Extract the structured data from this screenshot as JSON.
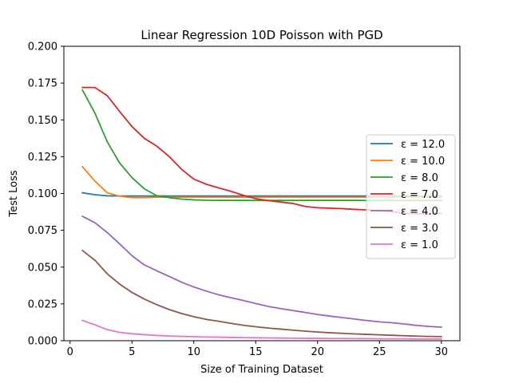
{
  "chart_data": {
    "type": "line",
    "title": "Linear Regression 10D Poisson with PGD",
    "xlabel": "Size of Training Dataset",
    "ylabel": "Test Loss",
    "xlim": [
      -0.5,
      31.5
    ],
    "ylim": [
      0,
      0.2
    ],
    "xticks": [
      0,
      5,
      10,
      15,
      20,
      25,
      30
    ],
    "xtick_labels": [
      "0",
      "5",
      "10",
      "15",
      "20",
      "25",
      "30"
    ],
    "yticks": [
      0,
      0.025,
      0.05,
      0.075,
      0.1,
      0.125,
      0.15,
      0.175,
      0.2
    ],
    "ytick_labels": [
      "0.000",
      "0.025",
      "0.050",
      "0.075",
      "0.100",
      "0.125",
      "0.150",
      "0.175",
      "0.200"
    ],
    "grid": false,
    "legend_position": "center-right",
    "x": [
      1,
      2,
      3,
      4,
      5,
      6,
      7,
      8,
      9,
      10,
      11,
      12,
      13,
      14,
      15,
      16,
      17,
      18,
      19,
      20,
      21,
      22,
      23,
      24,
      25,
      26,
      27,
      28,
      29,
      30
    ],
    "series": [
      {
        "name": "ε = 12.0",
        "color": "#1f77b4",
        "values": [
          0.1005,
          0.0992,
          0.0984,
          0.0983,
          0.0983,
          0.0983,
          0.0983,
          0.0983,
          0.0983,
          0.0983,
          0.0983,
          0.0983,
          0.0983,
          0.0983,
          0.0983,
          0.0983,
          0.0983,
          0.0983,
          0.0983,
          0.0983,
          0.0983,
          0.0983,
          0.0983,
          0.0983,
          0.0983,
          0.0983,
          0.0983,
          0.0983,
          0.0983,
          0.0983
        ]
      },
      {
        "name": "ε = 10.0",
        "color": "#ff7f0e",
        "values": [
          0.1182,
          0.1085,
          0.1005,
          0.0982,
          0.0972,
          0.0972,
          0.0975,
          0.0975,
          0.0975,
          0.0975,
          0.0975,
          0.0975,
          0.0975,
          0.0975,
          0.0975,
          0.0975,
          0.0975,
          0.0975,
          0.0975,
          0.0975,
          0.0975,
          0.0975,
          0.0975,
          0.0975,
          0.0975,
          0.0975,
          0.0975,
          0.0975,
          0.0975,
          0.0975
        ]
      },
      {
        "name": "ε = 8.0",
        "color": "#2ca02c",
        "values": [
          0.1703,
          0.1548,
          0.1352,
          0.1208,
          0.1108,
          0.1032,
          0.0985,
          0.0972,
          0.0962,
          0.0957,
          0.0954,
          0.0953,
          0.0953,
          0.0953,
          0.0953,
          0.0953,
          0.0953,
          0.0953,
          0.0953,
          0.0953,
          0.0953,
          0.0953,
          0.0953,
          0.0953,
          0.0953,
          0.0953,
          0.0953,
          0.0953,
          0.0953,
          0.0953
        ]
      },
      {
        "name": "ε = 7.0",
        "color": "#d62728",
        "values": [
          0.172,
          0.172,
          0.1665,
          0.1558,
          0.1455,
          0.1375,
          0.1322,
          0.1252,
          0.1165,
          0.1098,
          0.1063,
          0.1038,
          0.1015,
          0.0988,
          0.0965,
          0.0952,
          0.0942,
          0.0932,
          0.0912,
          0.0903,
          0.09,
          0.0897,
          0.0892,
          0.0888,
          0.0883,
          0.0875,
          0.0867,
          0.0862,
          0.0862,
          0.0865
        ]
      },
      {
        "name": "ε = 4.0",
        "color": "#9467bd",
        "values": [
          0.0845,
          0.0802,
          0.0735,
          0.0658,
          0.0578,
          0.0515,
          0.0475,
          0.0437,
          0.0398,
          0.0365,
          0.0337,
          0.0312,
          0.0292,
          0.0273,
          0.0253,
          0.0233,
          0.0218,
          0.0205,
          0.0192,
          0.0178,
          0.0167,
          0.0157,
          0.0147,
          0.0137,
          0.0128,
          0.0122,
          0.0114,
          0.0104,
          0.0097,
          0.0092
        ]
      },
      {
        "name": "ε = 3.0",
        "color": "#8c564b",
        "values": [
          0.0613,
          0.0547,
          0.0455,
          0.0385,
          0.0328,
          0.0283,
          0.0245,
          0.0212,
          0.0185,
          0.0163,
          0.0145,
          0.0132,
          0.0118,
          0.0105,
          0.0095,
          0.0086,
          0.0079,
          0.0072,
          0.0065,
          0.0059,
          0.0054,
          0.005,
          0.0046,
          0.0043,
          0.004,
          0.0037,
          0.0034,
          0.0031,
          0.0029,
          0.0028
        ]
      },
      {
        "name": "ε = 1.0",
        "color": "#e377c2",
        "values": [
          0.0138,
          0.0108,
          0.0075,
          0.0057,
          0.0047,
          0.0041,
          0.0036,
          0.0032,
          0.0029,
          0.0027,
          0.0025,
          0.0024,
          0.0022,
          0.0021,
          0.002,
          0.0019,
          0.0018,
          0.0017,
          0.0016,
          0.0016,
          0.0015,
          0.0015,
          0.0014,
          0.0014,
          0.0013,
          0.0013,
          0.0013,
          0.0012,
          0.0012,
          0.0012
        ]
      }
    ]
  }
}
